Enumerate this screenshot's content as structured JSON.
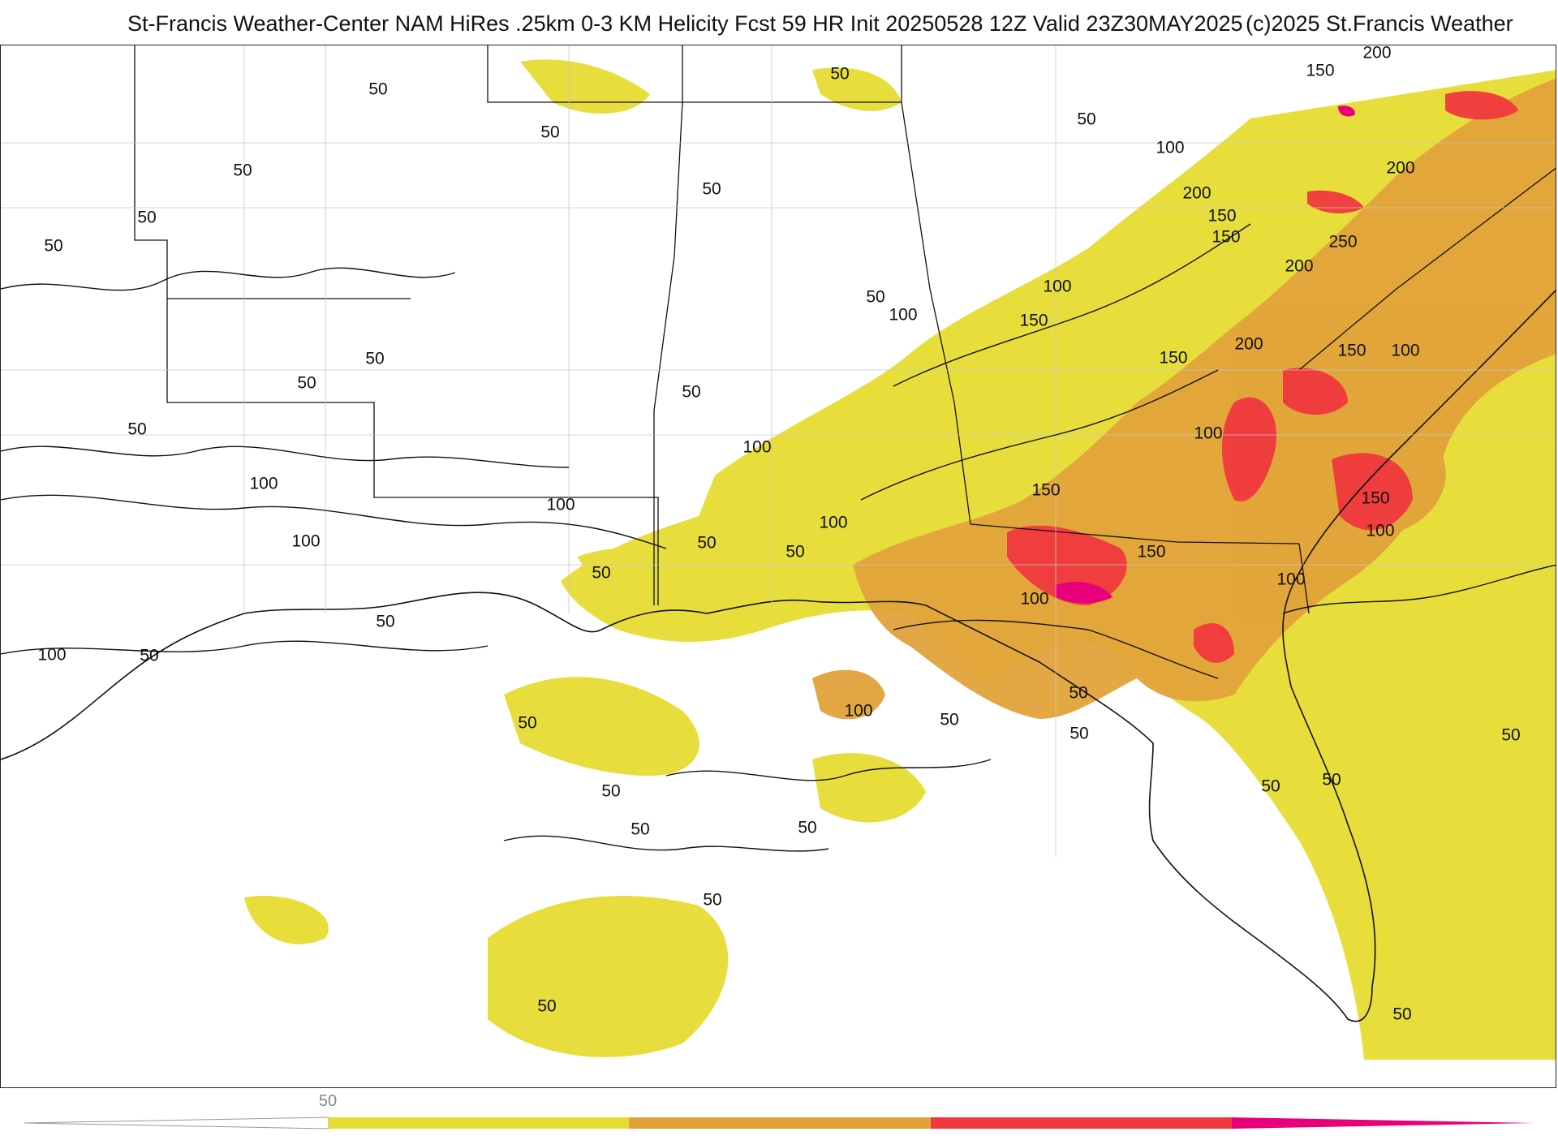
{
  "header": {
    "title": "St-Francis Weather-Center NAM HiRes .25km 0-3 KM Helicity Fcst 59 HR Init 20250528 12Z  Valid 23Z30MAY2025",
    "copyright": "(c)2025 St.Francis Weather"
  },
  "legend": {
    "tick_label": "50",
    "colors": [
      "#e6dc32",
      "#e2a23a",
      "#f0383e",
      "#e8007a"
    ]
  },
  "contour_labels": [
    "50",
    "50",
    "50",
    "50",
    "50",
    "50",
    "50",
    "50",
    "50",
    "50",
    "50",
    "50",
    "50",
    "50",
    "50",
    "50",
    "50",
    "50",
    "50",
    "50",
    "50",
    "50",
    "50",
    "50",
    "50",
    "100",
    "100",
    "100",
    "100",
    "100",
    "100",
    "100",
    "100",
    "100",
    "100",
    "100",
    "100",
    "100",
    "100",
    "100",
    "150",
    "150",
    "150",
    "150",
    "150",
    "150",
    "150",
    "150",
    "200",
    "200",
    "200",
    "200",
    "200",
    "250"
  ]
}
